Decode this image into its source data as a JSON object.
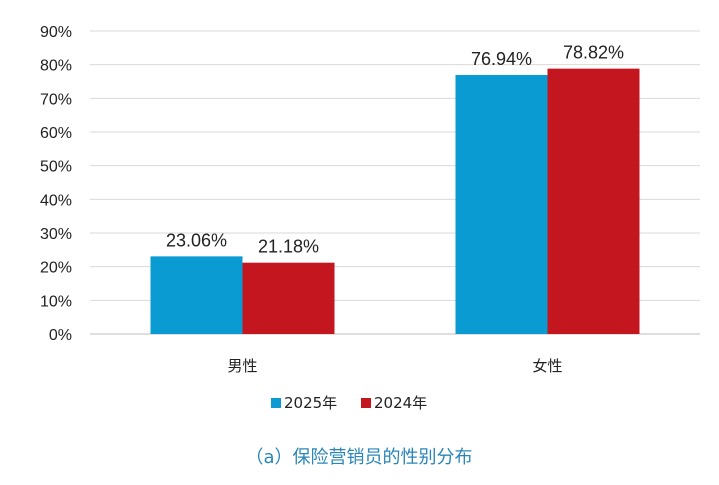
{
  "chart_data": {
    "type": "bar",
    "categories": [
      "男性",
      "女性"
    ],
    "series": [
      {
        "name": "2025年",
        "values": [
          23.06,
          76.94
        ],
        "color": "#0a9bd3"
      },
      {
        "name": "2024年",
        "values": [
          21.18,
          78.82
        ],
        "color": "#c3161f"
      }
    ],
    "data_labels": [
      [
        "23.06%",
        "76.94%"
      ],
      [
        "21.18%",
        "78.82%"
      ]
    ],
    "y_ticks": [
      "0%",
      "10%",
      "20%",
      "30%",
      "40%",
      "50%",
      "60%",
      "70%",
      "80%",
      "90%"
    ],
    "ylim": [
      0,
      90
    ],
    "grid": true,
    "legend_position": "bottom",
    "caption": "（a）保险营销员的性别分布",
    "caption_color": "#2b86b8"
  }
}
